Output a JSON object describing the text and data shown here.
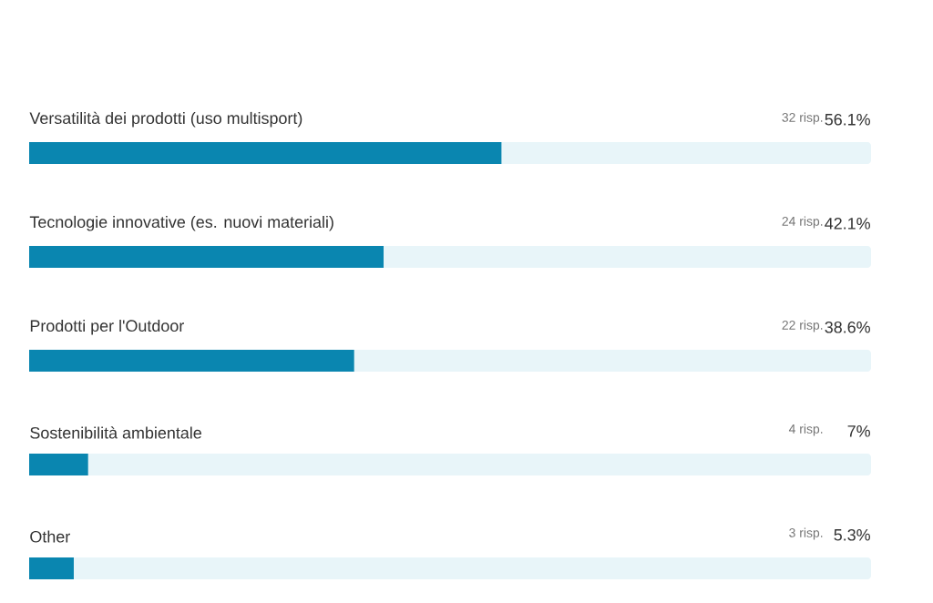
{
  "chart_data": {
    "type": "bar",
    "orientation": "horizontal",
    "categories": [
      "Versatilità dei prodotti (uso multisport)",
      "Tecnologie innovative (es. nuovi materiali)",
      "Prodotti per l'Outdoor",
      "Sostenibilità ambientale",
      "Other"
    ],
    "values": [
      56.1,
      42.1,
      38.6,
      7,
      5.3
    ],
    "value_labels": [
      "56.1%",
      "42.1%",
      "38.6%",
      "7%",
      "5.3%"
    ],
    "annotations": [
      "32 risp.",
      "24 risp.",
      "22 risp.",
      "4 risp.",
      "3 risp."
    ],
    "color": "#0a86b0",
    "xlim": [
      0,
      100
    ]
  }
}
